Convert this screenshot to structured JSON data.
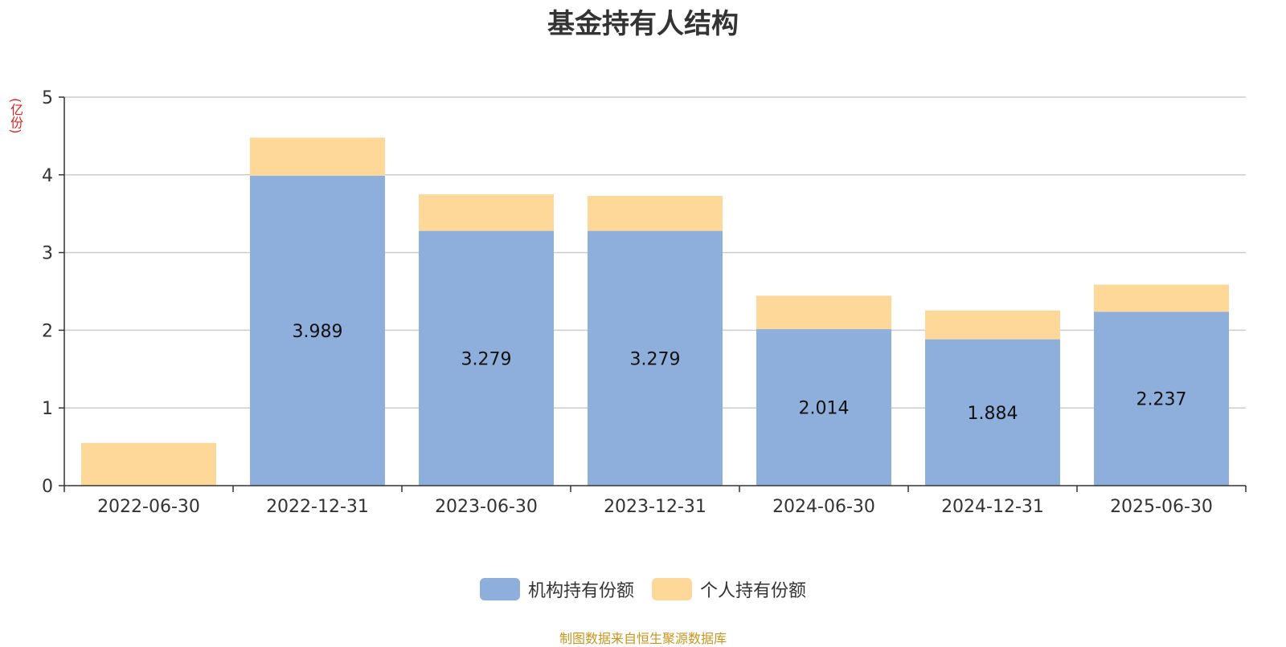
{
  "chart_data": {
    "type": "bar",
    "stacked": true,
    "title": "基金持有人结构",
    "y_unit": "(亿份)",
    "ylim": [
      0,
      5
    ],
    "y_ticks": [
      0,
      1,
      2,
      3,
      4,
      5
    ],
    "grid": true,
    "categories": [
      "2022-06-30",
      "2022-12-31",
      "2023-06-30",
      "2023-12-31",
      "2024-06-30",
      "2024-12-31",
      "2025-06-30"
    ],
    "series": [
      {
        "name": "机构持有份额",
        "color": "#8eaedb",
        "values": [
          0,
          3.989,
          3.279,
          3.279,
          2.014,
          1.884,
          2.237
        ],
        "labels": [
          "",
          "3.989",
          "3.279",
          "3.279",
          "2.014",
          "1.884",
          "2.237"
        ]
      },
      {
        "name": "个人持有份额",
        "color": "#fdd898",
        "values": [
          0.55,
          0.49,
          0.47,
          0.45,
          0.43,
          0.37,
          0.35
        ]
      }
    ],
    "legend_position": "bottom-center"
  },
  "footer": {
    "source_note": "制图数据来自恒生聚源数据库"
  }
}
